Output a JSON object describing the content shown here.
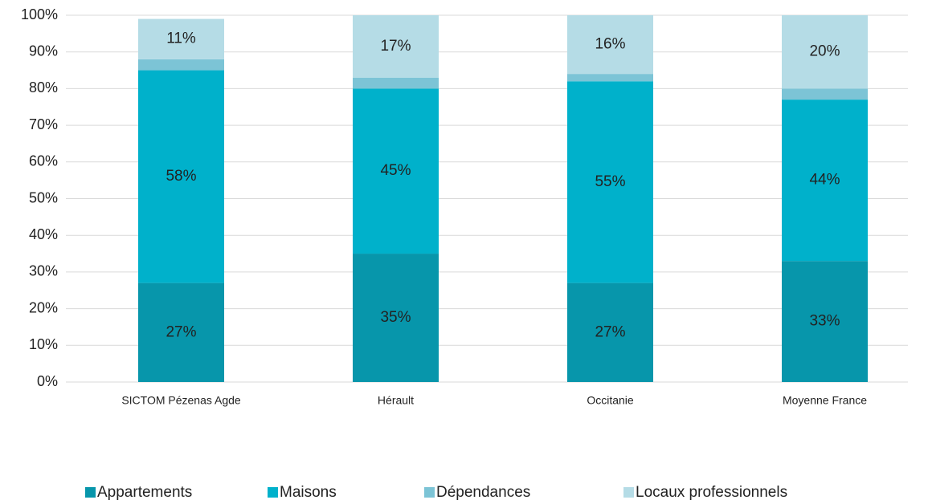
{
  "chart_data": {
    "type": "stacked_bar",
    "categories": [
      "SICTOM Pézenas Agde",
      "Hérault",
      "Occitanie",
      "Moyenne France"
    ],
    "series": [
      {
        "name": "Appartements",
        "color": "#0796ab",
        "values": [
          27,
          35,
          27,
          33
        ],
        "value_labels": [
          "27%",
          "35%",
          "27%",
          "33%"
        ]
      },
      {
        "name": "Maisons",
        "color": "#00b1cb",
        "values": [
          58,
          45,
          55,
          44
        ],
        "value_labels": [
          "58%",
          "45%",
          "55%",
          "44%"
        ]
      },
      {
        "name": "Dépendances",
        "color": "#7cc4d6",
        "values": [
          3,
          3,
          2,
          3
        ]
      },
      {
        "name": "Locaux professionnels",
        "color": "#b5dce6",
        "values": [
          11,
          17,
          16,
          20
        ],
        "value_labels": [
          "11%",
          "17%",
          "16%",
          "20%"
        ]
      }
    ],
    "ylim": [
      0,
      100
    ],
    "yticks": [
      {
        "value": 0,
        "label": "0%"
      },
      {
        "value": 10,
        "label": "10%"
      },
      {
        "value": 20,
        "label": "20%"
      },
      {
        "value": 30,
        "label": "30%"
      },
      {
        "value": 40,
        "label": "40%"
      },
      {
        "value": 50,
        "label": "50%"
      },
      {
        "value": 60,
        "label": "60%"
      },
      {
        "value": 70,
        "label": "70%"
      },
      {
        "value": 80,
        "label": "80%"
      },
      {
        "value": 90,
        "label": "90%"
      },
      {
        "value": 100,
        "label": "100%"
      }
    ],
    "grid": true,
    "legend": "bottom"
  }
}
